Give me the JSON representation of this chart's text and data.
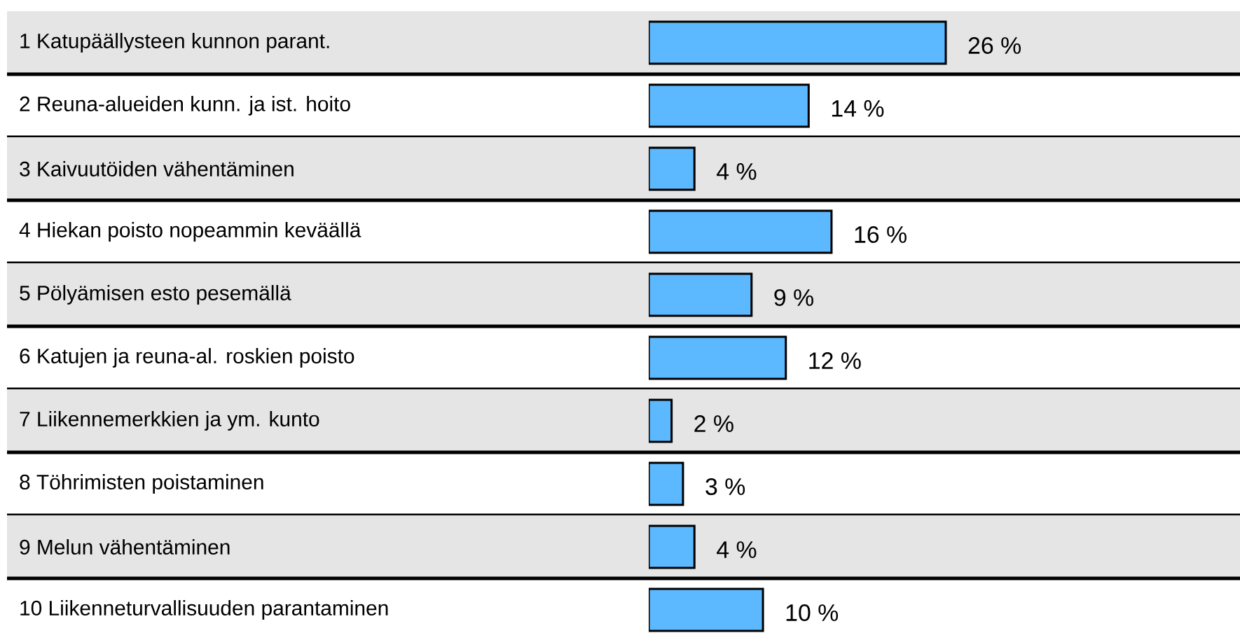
{
  "chart_data": {
    "type": "bar",
    "orientation": "horizontal",
    "categories": [
      "1 Katupäällysteen kunnon parant.",
      "2 Reuna-alueiden kunn. ja ist. hoito",
      "3 Kaivuutöiden vähentäminen",
      "4 Hiekan poisto nopeammin keväällä",
      "5 Pölyämisen esto pesemällä",
      "6 Katujen ja reuna-al. roskien poisto",
      "7 Liikennemerkkien ja ym. kunto",
      "8 Töhrimisten poistaminen",
      "9 Melun vähentäminen",
      "10 Liikenneturvallisuuden parantaminen"
    ],
    "values": [
      26,
      14,
      4,
      16,
      9,
      12,
      2,
      3,
      4,
      10
    ],
    "value_labels": [
      "26 %",
      "14 %",
      "4 %",
      "16 %",
      "9 %",
      "12 %",
      "2 %",
      "3 %",
      "4 %",
      "10 %"
    ],
    "color": "#5cb8ff"
  }
}
